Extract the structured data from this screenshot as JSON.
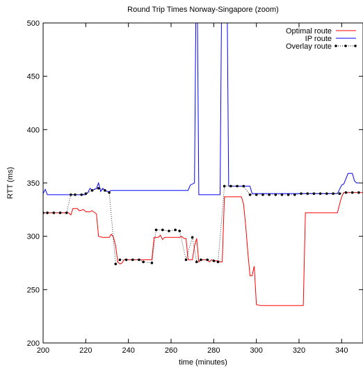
{
  "chart_data": {
    "type": "line",
    "title": "Round Trip Times Norway-Singapore (zoom)",
    "xlabel": "time (minutes)",
    "ylabel": "RTT (ms)",
    "xlim": [
      200,
      350
    ],
    "ylim": [
      200,
      500
    ],
    "xticks": [
      200,
      220,
      240,
      260,
      280,
      300,
      320,
      340
    ],
    "yticks": [
      200,
      250,
      300,
      350,
      400,
      450,
      500
    ],
    "grid": false,
    "legend_position": "top-right",
    "series": [
      {
        "name": "Optimal route",
        "color": "#ff0000",
        "style": "solid",
        "points": [
          [
            200,
            322
          ],
          [
            212,
            322
          ],
          [
            213,
            320
          ],
          [
            214,
            326
          ],
          [
            216,
            326
          ],
          [
            217,
            324
          ],
          [
            219,
            325
          ],
          [
            220,
            323
          ],
          [
            222,
            323
          ],
          [
            223,
            324
          ],
          [
            225,
            321
          ],
          [
            226,
            300
          ],
          [
            228,
            299
          ],
          [
            231,
            299
          ],
          [
            232,
            302
          ],
          [
            233,
            299
          ],
          [
            234,
            291
          ],
          [
            235,
            276
          ],
          [
            236,
            274
          ],
          [
            237,
            275
          ],
          [
            238,
            278
          ],
          [
            250,
            278
          ],
          [
            251,
            278
          ],
          [
            252,
            299
          ],
          [
            254,
            299
          ],
          [
            255,
            301
          ],
          [
            256,
            297
          ],
          [
            257,
            299
          ],
          [
            264,
            299
          ],
          [
            265,
            300
          ],
          [
            266,
            298
          ],
          [
            267,
            298
          ],
          [
            268,
            278
          ],
          [
            270,
            278
          ],
          [
            271,
            291
          ],
          [
            272,
            298
          ],
          [
            273,
            276
          ],
          [
            274,
            278
          ],
          [
            277,
            278
          ],
          [
            278,
            276
          ],
          [
            279,
            278
          ],
          [
            280,
            277
          ],
          [
            282,
            277
          ],
          [
            283,
            276
          ],
          [
            284,
            276
          ],
          [
            285,
            337
          ],
          [
            286,
            337
          ],
          [
            293,
            337
          ],
          [
            294,
            330
          ],
          [
            295,
            310
          ],
          [
            296,
            285
          ],
          [
            297,
            263
          ],
          [
            298,
            263
          ],
          [
            299,
            272
          ],
          [
            300,
            236
          ],
          [
            302,
            235
          ],
          [
            322,
            235
          ],
          [
            323,
            322
          ],
          [
            338,
            322
          ],
          [
            339,
            330
          ],
          [
            340,
            337
          ],
          [
            341,
            341
          ],
          [
            350,
            341
          ]
        ]
      },
      {
        "name": "IP route",
        "color": "#0000ff",
        "style": "solid",
        "points": [
          [
            200,
            340
          ],
          [
            201,
            344
          ],
          [
            202,
            339
          ],
          [
            210,
            339
          ],
          [
            220,
            339
          ],
          [
            221,
            341
          ],
          [
            222,
            345
          ],
          [
            223,
            343
          ],
          [
            224,
            344
          ],
          [
            225,
            345
          ],
          [
            226,
            350
          ],
          [
            227,
            342
          ],
          [
            228,
            345
          ],
          [
            229,
            343
          ],
          [
            230,
            342
          ],
          [
            231,
            342
          ],
          [
            232,
            343
          ],
          [
            268,
            343
          ],
          [
            269,
            348
          ],
          [
            271,
            350
          ],
          [
            272,
            600
          ],
          [
            273,
            339
          ],
          [
            283,
            339
          ],
          [
            284,
            600
          ],
          [
            286,
            600
          ],
          [
            287,
            347
          ],
          [
            297,
            347
          ],
          [
            298,
            340
          ],
          [
            338,
            340
          ],
          [
            339,
            344
          ],
          [
            340,
            348
          ],
          [
            341,
            349
          ],
          [
            343,
            359
          ],
          [
            345,
            359
          ],
          [
            346,
            352
          ],
          [
            347,
            350
          ],
          [
            350,
            350
          ]
        ]
      },
      {
        "name": "Overlay route",
        "color": "#000000",
        "style": "dotted",
        "points": [
          [
            200,
            322
          ],
          [
            202,
            322
          ],
          [
            205,
            322
          ],
          [
            208,
            322
          ],
          [
            211,
            322
          ],
          [
            213,
            339
          ],
          [
            215,
            339
          ],
          [
            218,
            339
          ],
          [
            220,
            340
          ],
          [
            223,
            343
          ],
          [
            226,
            345
          ],
          [
            229,
            343
          ],
          [
            231,
            341
          ],
          [
            234,
            274
          ],
          [
            236,
            278
          ],
          [
            239,
            278
          ],
          [
            242,
            278
          ],
          [
            245,
            278
          ],
          [
            247,
            276
          ],
          [
            251,
            275
          ],
          [
            253,
            306
          ],
          [
            256,
            306
          ],
          [
            259,
            305
          ],
          [
            262,
            306
          ],
          [
            264,
            305
          ],
          [
            267,
            278
          ],
          [
            270,
            299
          ],
          [
            272,
            276
          ],
          [
            274,
            278
          ],
          [
            277,
            278
          ],
          [
            280,
            277
          ],
          [
            282,
            276
          ],
          [
            285,
            347
          ],
          [
            288,
            347
          ],
          [
            291,
            347
          ],
          [
            294,
            347
          ],
          [
            297,
            339
          ],
          [
            300,
            339
          ],
          [
            303,
            339
          ],
          [
            306,
            339
          ],
          [
            309,
            339
          ],
          [
            312,
            339
          ],
          [
            315,
            339
          ],
          [
            318,
            339
          ],
          [
            321,
            340
          ],
          [
            324,
            340
          ],
          [
            327,
            340
          ],
          [
            330,
            340
          ],
          [
            333,
            340
          ],
          [
            336,
            340
          ],
          [
            339,
            340
          ],
          [
            342,
            341
          ],
          [
            345,
            341
          ],
          [
            348,
            341
          ]
        ]
      }
    ]
  }
}
